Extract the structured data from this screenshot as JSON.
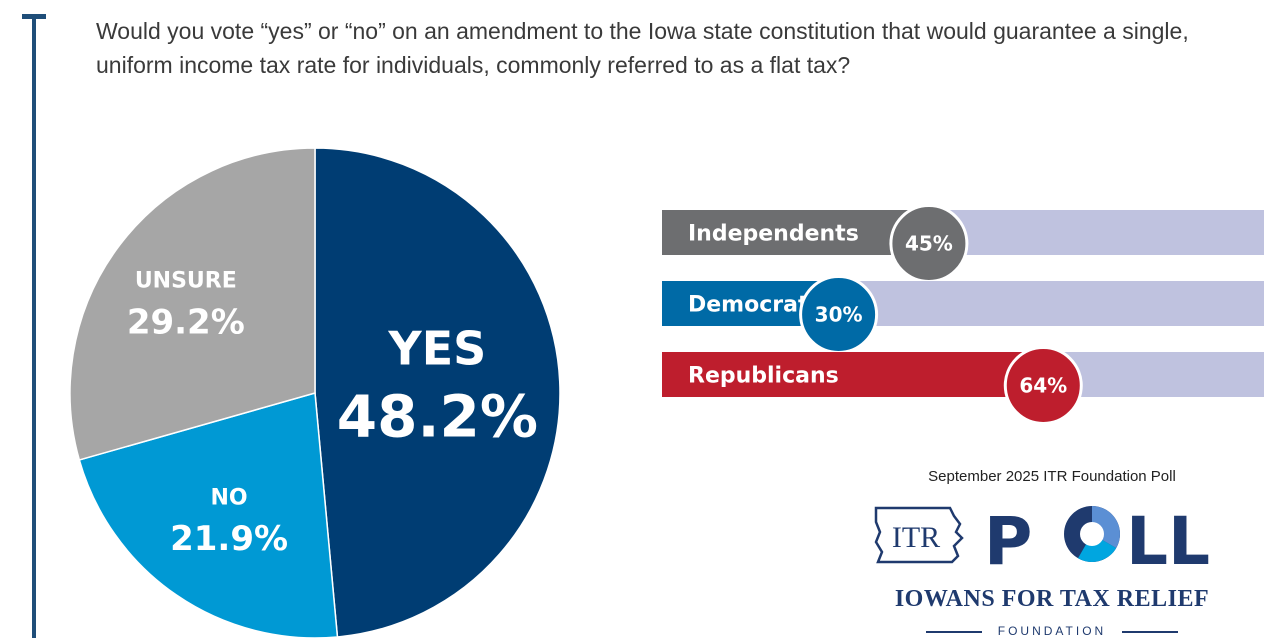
{
  "question": "Would you vote “yes” or “no” on an amendment to the Iowa state constitution that would guarantee a single, uniform income tax rate for individuals, commonly referred to as a flat tax?",
  "chart_data": [
    {
      "type": "pie",
      "slices": [
        {
          "label": "YES",
          "value": 48.2,
          "display": "48.2%",
          "color": "#003d73"
        },
        {
          "label": "NO",
          "value": 21.9,
          "display": "21.9%",
          "color": "#0099d4"
        },
        {
          "label": "UNSURE",
          "value": 29.2,
          "display": "29.2%",
          "color": "#a6a6a6"
        }
      ]
    },
    {
      "type": "bar",
      "orientation": "horizontal",
      "categories": [
        "Independents",
        "Democrats",
        "Republicans"
      ],
      "values": [
        45,
        30,
        64
      ],
      "value_labels": [
        "45%",
        "30%",
        "64%"
      ],
      "xlim": [
        0,
        100
      ],
      "colors": [
        "#6d6e70",
        "#006aa6",
        "#be1e2d"
      ],
      "track_color": "#bfc2df"
    }
  ],
  "logo": {
    "caption": "September 2025 ITR Foundation Poll",
    "mark_text": "ITR",
    "word_p": "P",
    "word_ll": "LL",
    "org_name": "IOWANS FOR TAX RELIEF",
    "org_sub": "FOUNDATION"
  }
}
